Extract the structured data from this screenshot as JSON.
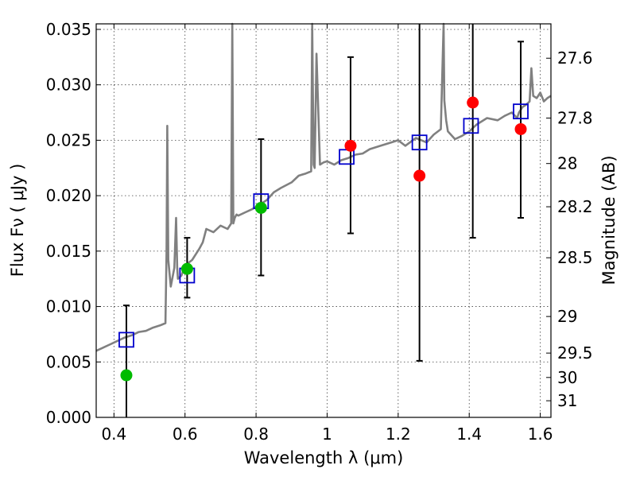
{
  "chart_data": {
    "type": "scatter",
    "xlabel": "Wavelength  λ (μm)",
    "ylabel": "Flux  Fν  ( μJy )",
    "y2label": "Magnitude (AB)",
    "xlim": [
      0.35,
      1.63
    ],
    "ylim": [
      0.0,
      0.0355
    ],
    "x_ticks": [
      0.4,
      0.6,
      0.8,
      1.0,
      1.2,
      1.4,
      1.6
    ],
    "x_tick_labels": [
      "0.4",
      "0.6",
      "0.8",
      "1",
      "1.2",
      "1.4",
      "1.6"
    ],
    "y_ticks": [
      0.0,
      0.005,
      0.01,
      0.015,
      0.02,
      0.025,
      0.03,
      0.035
    ],
    "y_tick_labels": [
      "0.000",
      "0.005",
      "0.010",
      "0.015",
      "0.020",
      "0.025",
      "0.030",
      "0.035"
    ],
    "y2_ticks": [
      27.6,
      27.8,
      28,
      28.2,
      28.5,
      29,
      29.5,
      30,
      31
    ],
    "y2_tick_labels": [
      "27.6",
      "27.8",
      "28",
      "28.2",
      "28.5",
      "29",
      "29.5",
      "30",
      "31"
    ],
    "y2_tick_flux": [
      0.0324,
      0.027,
      0.0229,
      0.019,
      0.0144,
      0.0091,
      0.0058,
      0.0036,
      0.0015
    ],
    "grid": true,
    "colors": {
      "model": "#808080",
      "model_photometry": "#0000cc",
      "observed_red": "#ff0000",
      "observed_green": "#00bb00",
      "errorbar": "#000000"
    },
    "model_spectrum": {
      "x": [
        0.35,
        0.37,
        0.39,
        0.41,
        0.43,
        0.45,
        0.47,
        0.49,
        0.51,
        0.53,
        0.545,
        0.548,
        0.55,
        0.553,
        0.56,
        0.57,
        0.575,
        0.578,
        0.58,
        0.59,
        0.6,
        0.62,
        0.64,
        0.65,
        0.66,
        0.68,
        0.7,
        0.72,
        0.73,
        0.733,
        0.736,
        0.74,
        0.745,
        0.75,
        0.77,
        0.79,
        0.81,
        0.83,
        0.85,
        0.87,
        0.9,
        0.92,
        0.94,
        0.955,
        0.958,
        0.962,
        0.965,
        0.97,
        0.98,
        0.985,
        0.99,
        1.0,
        1.02,
        1.04,
        1.06,
        1.08,
        1.1,
        1.12,
        1.15,
        1.18,
        1.2,
        1.22,
        1.25,
        1.28,
        1.3,
        1.32,
        1.328,
        1.33,
        1.335,
        1.34,
        1.36,
        1.38,
        1.4,
        1.42,
        1.45,
        1.48,
        1.5,
        1.52,
        1.535,
        1.54,
        1.55,
        1.56,
        1.57,
        1.575,
        1.58,
        1.59,
        1.6,
        1.61,
        1.62,
        1.63
      ],
      "y": [
        0.006,
        0.0063,
        0.0066,
        0.0069,
        0.0072,
        0.0074,
        0.0077,
        0.0078,
        0.0081,
        0.0083,
        0.0085,
        0.015,
        0.0263,
        0.0142,
        0.0118,
        0.0135,
        0.018,
        0.0135,
        0.0125,
        0.0128,
        0.0137,
        0.0142,
        0.0152,
        0.0158,
        0.017,
        0.0167,
        0.0173,
        0.017,
        0.0175,
        0.0355,
        0.0175,
        0.018,
        0.0183,
        0.0182,
        0.0185,
        0.0188,
        0.0192,
        0.0196,
        0.0203,
        0.0207,
        0.0212,
        0.0218,
        0.022,
        0.0222,
        0.0355,
        0.0228,
        0.0225,
        0.0328,
        0.0228,
        0.0229,
        0.023,
        0.0231,
        0.0228,
        0.0232,
        0.0234,
        0.0237,
        0.0238,
        0.0242,
        0.0245,
        0.0248,
        0.025,
        0.0245,
        0.0252,
        0.0248,
        0.0255,
        0.026,
        0.0355,
        0.0286,
        0.0268,
        0.0258,
        0.0251,
        0.0254,
        0.0258,
        0.0264,
        0.027,
        0.0268,
        0.0272,
        0.0275,
        0.027,
        0.0275,
        0.028,
        0.0282,
        0.0285,
        0.0315,
        0.029,
        0.0288,
        0.0293,
        0.0285,
        0.0288,
        0.029
      ]
    },
    "model_photometry": {
      "x": [
        0.435,
        0.606,
        0.814,
        1.055,
        1.26,
        1.405,
        1.545
      ],
      "y": [
        0.007,
        0.0128,
        0.0195,
        0.0235,
        0.0248,
        0.0263,
        0.0276
      ]
    },
    "observed": [
      {
        "x": 0.435,
        "y": 0.0038,
        "err_low": 0.0,
        "err_high": 0.0101,
        "color": "green"
      },
      {
        "x": 0.606,
        "y": 0.0134,
        "err_low": 0.0108,
        "err_high": 0.0162,
        "color": "green"
      },
      {
        "x": 0.814,
        "y": 0.0189,
        "err_low": 0.0128,
        "err_high": 0.0251,
        "color": "green"
      },
      {
        "x": 1.066,
        "y": 0.0245,
        "err_low": 0.0166,
        "err_high": 0.0325,
        "color": "red"
      },
      {
        "x": 1.26,
        "y": 0.0218,
        "err_low": 0.0051,
        "err_high": 0.0355,
        "color": "red"
      },
      {
        "x": 1.41,
        "y": 0.0284,
        "err_low": 0.0162,
        "err_high": 0.0355,
        "color": "red"
      },
      {
        "x": 1.545,
        "y": 0.026,
        "err_low": 0.018,
        "err_high": 0.0339,
        "color": "red"
      }
    ]
  }
}
